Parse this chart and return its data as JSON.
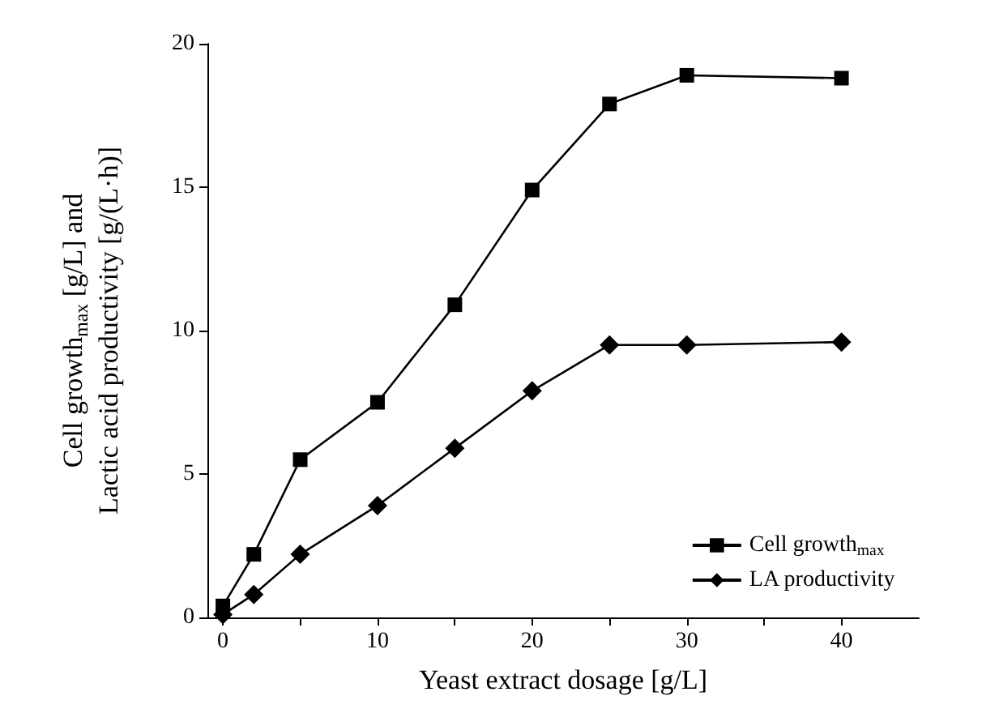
{
  "chart_data": {
    "type": "line",
    "xlabel": "Yeast extract dosage [g/L]",
    "ylabel": "Cell growth$_{max}$ [g/L] and\nLactic acid productivity [g/(L·h)]",
    "x": [
      0,
      2,
      5,
      10,
      15,
      20,
      25,
      30,
      40
    ],
    "series": [
      {
        "name": "Cell growth$_{max}$",
        "color": "#000000",
        "marker": "square",
        "values": [
          0.4,
          2.2,
          5.5,
          7.5,
          10.9,
          14.9,
          17.9,
          18.9,
          18.8
        ]
      },
      {
        "name": "LA productivity",
        "color": "#000000",
        "marker": "diamond",
        "values": [
          0.1,
          0.8,
          2.2,
          3.9,
          5.9,
          7.9,
          9.5,
          9.5,
          9.6
        ]
      }
    ],
    "xlim": [
      -1,
      45
    ],
    "xticks": [
      0,
      {
        "value": 5,
        "label": null
      },
      10,
      {
        "value": 15,
        "label": null
      },
      20,
      {
        "value": 25,
        "label": null
      },
      30,
      {
        "value": 35,
        "label": null
      },
      40
    ],
    "ylim": [
      0,
      20
    ],
    "yticks": [
      0,
      5,
      10,
      15,
      20
    ],
    "grid": false,
    "legend": "bottom right",
    "line_style": "solid"
  }
}
